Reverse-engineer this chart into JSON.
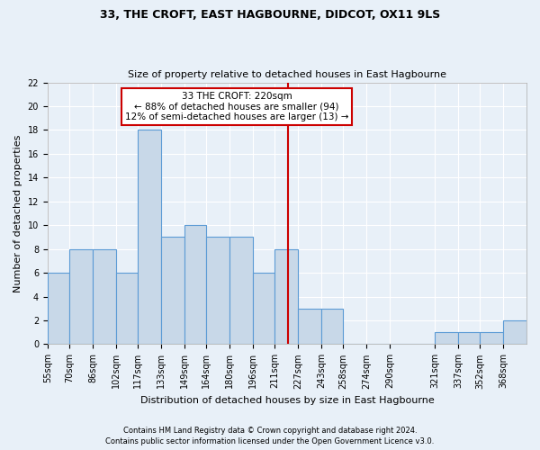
{
  "title1": "33, THE CROFT, EAST HAGBOURNE, DIDCOT, OX11 9LS",
  "title2": "Size of property relative to detached houses in East Hagbourne",
  "xlabel": "Distribution of detached houses by size in East Hagbourne",
  "ylabel": "Number of detached properties",
  "footer1": "Contains HM Land Registry data © Crown copyright and database right 2024.",
  "footer2": "Contains public sector information licensed under the Open Government Licence v3.0.",
  "bin_labels": [
    "55sqm",
    "70sqm",
    "86sqm",
    "102sqm",
    "117sqm",
    "133sqm",
    "149sqm",
    "164sqm",
    "180sqm",
    "196sqm",
    "211sqm",
    "227sqm",
    "243sqm",
    "258sqm",
    "274sqm",
    "290sqm",
    "321sqm",
    "337sqm",
    "352sqm",
    "368sqm"
  ],
  "bin_edges": [
    55,
    70,
    86,
    102,
    117,
    133,
    149,
    164,
    180,
    196,
    211,
    227,
    243,
    258,
    274,
    290,
    321,
    337,
    352,
    368,
    384
  ],
  "values": [
    6,
    8,
    8,
    6,
    18,
    9,
    10,
    9,
    9,
    6,
    8,
    3,
    3,
    0,
    0,
    0,
    1,
    1,
    1,
    2
  ],
  "bar_color": "#c8d8e8",
  "bar_edge_color": "#5b9bd5",
  "property_value": 220,
  "annotation_title": "33 THE CROFT: 220sqm",
  "annotation_line1": "← 88% of detached houses are smaller (94)",
  "annotation_line2": "12% of semi-detached houses are larger (13) →",
  "annotation_box_color": "#ffffff",
  "annotation_box_edge": "#cc0000",
  "vline_color": "#cc0000",
  "ylim": [
    0,
    22
  ],
  "yticks": [
    0,
    2,
    4,
    6,
    8,
    10,
    12,
    14,
    16,
    18,
    20,
    22
  ],
  "background_color": "#e8f0f8",
  "grid_color": "#ffffff",
  "title1_fontsize": 9,
  "title2_fontsize": 8,
  "ylabel_fontsize": 8,
  "xlabel_fontsize": 8,
  "tick_fontsize": 7,
  "footer_fontsize": 6
}
